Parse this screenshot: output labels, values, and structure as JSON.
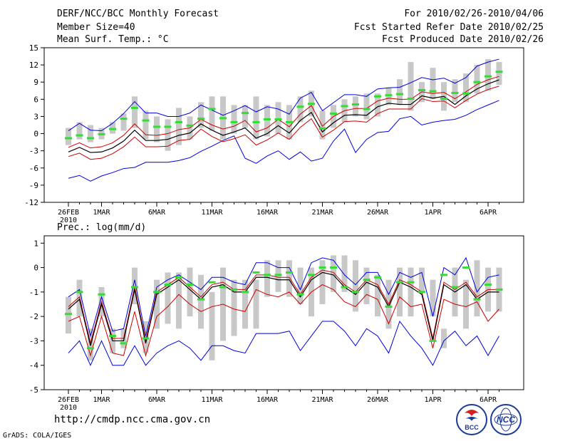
{
  "header": {
    "title": "DERF/NCC/BCC Monthly Forecast",
    "member_size": "Member Size=40",
    "variable": "Mean Surf. Temp.: °C",
    "period": "For 2010/02/26-2010/04/06",
    "fcst_started": "Fcst Started Refer Date 2010/02/25",
    "fcst_produced": "Fcst Produced Date 2010/02/26"
  },
  "footer": {
    "url": "http://cmdp.ncc.cma.gov.cn",
    "grads": "GrADS: COLA/IGES",
    "logo_bcc": "BCC",
    "logo_ncc": "NCC"
  },
  "colors": {
    "mean_line": "#000000",
    "bound_inner": "#cc0000",
    "bound_outer": "#0000dd",
    "box": "#c8c8c8",
    "obs_marker": "#33dd33"
  },
  "chart_data": [
    {
      "type": "line",
      "title": "Mean Surf. Temp.: °C",
      "ylim": [
        -12,
        15
      ],
      "yticks": [
        -12,
        -9,
        -6,
        -3,
        0,
        3,
        6,
        9,
        12,
        15
      ],
      "ytick_labels": [
        "-12",
        "-9",
        "-6",
        "-3",
        "0",
        "3",
        "6",
        "9",
        "12",
        "15"
      ],
      "xtick_days": [
        0,
        3,
        8,
        13,
        18,
        23,
        28,
        33,
        38
      ],
      "xtick_labels": [
        "26FEB",
        "1MAR",
        "6MAR",
        "11MAR",
        "16MAR",
        "21MAR",
        "26MAR",
        "1APR",
        "6APR"
      ],
      "x_sublabel": "2010",
      "series": [
        {
          "name": "box_low",
          "values": [
            -2,
            -1,
            -1.5,
            -1,
            0,
            0.5,
            1,
            -1,
            -1.5,
            -3,
            -2,
            -1,
            1,
            0.5,
            -1,
            0,
            1,
            -1,
            -0.5,
            0,
            -1,
            2,
            3,
            -1,
            1,
            2,
            3,
            2.5,
            3,
            5,
            5,
            4,
            5.5,
            6,
            4,
            5.5,
            5.5,
            7,
            7.5,
            8.5
          ]
        },
        {
          "name": "box_high",
          "values": [
            1,
            2,
            1.5,
            1,
            2,
            3.5,
            6.5,
            4,
            3,
            2.5,
            4.5,
            3,
            5.5,
            6.5,
            6.5,
            5,
            5,
            6.5,
            5,
            5.5,
            5,
            6.5,
            7.5,
            4,
            5,
            6,
            6.5,
            7,
            7,
            8,
            9.5,
            12.5,
            9,
            11.5,
            9,
            9.5,
            10.5,
            12,
            13,
            12.5
          ]
        },
        {
          "name": "blue_lower",
          "values": [
            -7.8,
            -7.3,
            -8.3,
            -7.4,
            -6.8,
            -6.1,
            -5.9,
            -5.0,
            -5.0,
            -5.0,
            -4.7,
            -4.2,
            -3.1,
            -2.2,
            -1.2,
            -0.4,
            -4.3,
            -5.2,
            -3.9,
            -3.0,
            -4.5,
            -3.2,
            -4.8,
            -4.3,
            -1.3,
            0.8,
            -3.3,
            -1.0,
            0.2,
            0.4,
            2.6,
            3.0,
            1.5,
            2.0,
            2.3,
            2.5,
            3.2,
            4.2,
            5.0,
            5.8
          ]
        },
        {
          "name": "red_lower",
          "values": [
            -4.0,
            -3.4,
            -4.5,
            -4.3,
            -3.5,
            -2.3,
            -0.6,
            -2.3,
            -2.3,
            -2.2,
            -1.2,
            -1.0,
            0.8,
            -0.5,
            -1.4,
            -0.9,
            -0.2,
            -2.0,
            -1.1,
            0.1,
            -1.0,
            1.1,
            2.6,
            -0.6,
            0.6,
            2.1,
            2.2,
            2.0,
            3.5,
            4.3,
            4.3,
            4.3,
            6.1,
            5.6,
            5.7,
            4.5,
            5.8,
            6.9,
            7.7,
            8.3
          ]
        },
        {
          "name": "ensemble_mean",
          "values": [
            -3.2,
            -2.4,
            -3.3,
            -3.2,
            -2.5,
            -1.3,
            0.6,
            -1.2,
            -1.2,
            -1.0,
            -0.3,
            0.1,
            1.7,
            0.6,
            -0.3,
            0.3,
            1.0,
            -0.8,
            0.0,
            1.4,
            0.1,
            2.3,
            3.7,
            0.3,
            1.9,
            3.2,
            3.3,
            3.2,
            4.7,
            5.3,
            5.1,
            5.1,
            6.6,
            6.2,
            6.5,
            5.1,
            6.6,
            7.8,
            8.7,
            9.4
          ]
        },
        {
          "name": "red_upper",
          "values": [
            -2.4,
            -1.6,
            -2.5,
            -2.3,
            -1.6,
            -0.3,
            1.7,
            -0.2,
            -0.3,
            0.0,
            0.7,
            1.0,
            2.5,
            1.5,
            0.8,
            1.3,
            2.3,
            0.3,
            1.0,
            2.5,
            1.2,
            3.4,
            4.9,
            1.3,
            3.0,
            4.0,
            4.4,
            4.4,
            5.7,
            6.2,
            6.0,
            6.0,
            7.3,
            7.0,
            7.2,
            6.1,
            7.3,
            8.6,
            9.4,
            10.0
          ]
        },
        {
          "name": "blue_upper",
          "values": [
            0.5,
            1.8,
            0.6,
            0.5,
            1.8,
            3.5,
            5.6,
            3.6,
            3.6,
            3.0,
            3.0,
            3.6,
            5.0,
            4.1,
            3.2,
            4.0,
            4.9,
            3.8,
            4.7,
            4.3,
            3.4,
            6.2,
            7.2,
            4.0,
            5.4,
            6.8,
            6.8,
            6.5,
            7.8,
            8.0,
            8.1,
            8.9,
            9.8,
            9.4,
            9.7,
            8.8,
            9.8,
            11.8,
            12.5,
            13.0
          ]
        },
        {
          "name": "observed",
          "values": [
            -0.8,
            -0.3,
            -0.8,
            -0.1,
            0.8,
            2.6,
            4.5,
            2.3,
            1.2,
            1.2,
            2.0,
            1.4,
            2.6,
            4.3,
            2.7,
            2.0,
            3.6,
            2.0,
            2.5,
            2.5,
            2.0,
            4.7,
            5.2,
            0.9,
            3.5,
            4.8,
            5.1,
            4.3,
            6.5,
            6.7,
            6.9,
            6.1,
            7.6,
            7.4,
            6.1,
            7.1,
            7.0,
            9.0,
            10.0,
            10.8
          ]
        }
      ]
    },
    {
      "type": "line",
      "title": "Prec.: log(mm/d)",
      "ylim": [
        -5,
        1.3
      ],
      "yticks": [
        -5,
        -4,
        -3,
        -2,
        -1,
        0,
        1
      ],
      "ytick_labels": [
        "-5",
        "-4",
        "-3",
        "-2",
        "-1",
        "0",
        "1"
      ],
      "xtick_days": [
        0,
        3,
        8,
        13,
        18,
        23,
        28,
        33,
        38
      ],
      "xtick_labels": [
        "26FEB",
        "1MAR",
        "6MAR",
        "11MAR",
        "16MAR",
        "21MAR",
        "26MAR",
        "1APR",
        "6APR"
      ],
      "x_sublabel": "2010",
      "series": [
        {
          "name": "box_low",
          "values": [
            -2.7,
            -2.0,
            -3.8,
            -2.0,
            -3.5,
            -3.3,
            -1.5,
            -3.5,
            -2.5,
            -2.3,
            -2.5,
            -2.0,
            -2.5,
            -3.8,
            -3.0,
            -2.8,
            -2.5,
            -2.5,
            -1.2,
            -1.0,
            -1.2,
            -1.5,
            -2.0,
            -1.5,
            -1.0,
            -1.0,
            -1.8,
            -1.5,
            -2.0,
            -2.5,
            -2.0,
            -2.0,
            -1.0,
            -2.0,
            -3.3,
            -2.0,
            -2.5,
            -2.0,
            -1.8,
            -1.8
          ]
        },
        {
          "name": "box_high",
          "values": [
            -1.2,
            -0.5,
            -2.5,
            -0.8,
            -2.5,
            -2.5,
            0.0,
            -2.2,
            -0.5,
            -0.2,
            -0.2,
            0.0,
            -0.3,
            -1.0,
            0.0,
            -0.5,
            -0.5,
            -0.5,
            0.3,
            0.3,
            0.3,
            0.0,
            0.0,
            0.3,
            0.5,
            0.5,
            0.3,
            0.0,
            -0.3,
            -0.5,
            0.0,
            0.0,
            0.0,
            -0.5,
            -2.5,
            0.0,
            -0.5,
            0.3,
            0.0,
            0.0
          ]
        },
        {
          "name": "blue_lower",
          "values": [
            -3.5,
            -3.0,
            -4.0,
            -3.0,
            -4.0,
            -4.0,
            -3.2,
            -4.0,
            -3.5,
            -3.2,
            -3.0,
            -3.3,
            -3.8,
            -3.2,
            -3.2,
            -3.4,
            -3.5,
            -2.7,
            -2.7,
            -2.7,
            -2.6,
            -3.4,
            -2.8,
            -2.2,
            -2.2,
            -2.6,
            -3.2,
            -2.5,
            -2.8,
            -3.5,
            -2.2,
            -2.8,
            -3.3,
            -4.0,
            -3.0,
            -2.6,
            -3.2,
            -2.8,
            -3.6,
            -2.8
          ]
        },
        {
          "name": "red_lower",
          "values": [
            -2.2,
            -2.0,
            -3.6,
            -2.0,
            -3.5,
            -3.6,
            -1.8,
            -3.6,
            -2.0,
            -1.6,
            -1.1,
            -1.5,
            -1.8,
            -1.6,
            -1.5,
            -1.7,
            -1.8,
            -0.9,
            -1.1,
            -1.2,
            -1.0,
            -1.5,
            -1.0,
            -0.7,
            -0.9,
            -1.4,
            -1.6,
            -1.1,
            -1.3,
            -2.3,
            -1.2,
            -1.6,
            -1.5,
            -3.3,
            -1.3,
            -1.5,
            -1.6,
            -1.4,
            -2.2,
            -1.7
          ]
        },
        {
          "name": "ensemble_mean",
          "values": [
            -1.7,
            -1.3,
            -3.2,
            -1.5,
            -3.0,
            -3.0,
            -0.9,
            -3.1,
            -1.1,
            -0.8,
            -0.5,
            -0.9,
            -1.3,
            -0.8,
            -0.7,
            -1.0,
            -1.0,
            -0.4,
            -0.4,
            -0.5,
            -0.5,
            -1.2,
            -0.5,
            -0.2,
            -0.3,
            -0.8,
            -1.1,
            -0.6,
            -0.8,
            -1.6,
            -0.6,
            -0.8,
            -1.1,
            -3.0,
            -0.7,
            -1.0,
            -0.7,
            -1.3,
            -1.0,
            -1.0
          ]
        },
        {
          "name": "red_upper",
          "values": [
            -1.6,
            -1.2,
            -3.1,
            -1.4,
            -2.9,
            -2.9,
            -0.8,
            -3.0,
            -1.0,
            -0.7,
            -0.4,
            -0.8,
            -1.2,
            -0.7,
            -0.6,
            -0.9,
            -0.9,
            -0.3,
            -0.3,
            -0.4,
            -0.4,
            -1.1,
            -0.4,
            -0.1,
            -0.2,
            -0.7,
            -1.0,
            -0.5,
            -0.7,
            -1.5,
            -0.5,
            -0.7,
            -1.0,
            -2.9,
            -0.6,
            -0.9,
            -0.6,
            -1.2,
            -0.9,
            -0.9
          ]
        },
        {
          "name": "blue_upper",
          "values": [
            -1.2,
            -0.9,
            -2.8,
            -1.2,
            -2.6,
            -2.5,
            -0.5,
            -2.8,
            -0.8,
            -0.5,
            -0.3,
            -0.6,
            -0.9,
            -0.4,
            -0.4,
            -0.6,
            -0.7,
            0.2,
            0.2,
            0.0,
            0.0,
            -0.9,
            0.2,
            0.4,
            0.3,
            -0.3,
            -0.7,
            -0.2,
            -0.2,
            -1.1,
            -0.2,
            -0.4,
            -0.2,
            -2.0,
            0.0,
            -0.3,
            0.4,
            -1.0,
            -0.4,
            -0.3
          ]
        },
        {
          "name": "observed",
          "values": [
            -1.9,
            -1.0,
            -3.3,
            -1.1,
            -2.8,
            -3.1,
            -0.8,
            -2.9,
            -1.0,
            -0.7,
            -0.4,
            -0.7,
            -1.3,
            -0.6,
            -0.8,
            -0.9,
            -1.0,
            -0.2,
            -0.3,
            -0.3,
            -0.2,
            -1.1,
            -0.3,
            0.0,
            0.0,
            -0.8,
            -1.0,
            -0.5,
            -0.4,
            -1.6,
            -0.6,
            -0.6,
            -1.0,
            -3.0,
            -0.3,
            -0.8,
            0.0,
            -1.3,
            -0.7,
            -0.9
          ]
        }
      ]
    }
  ]
}
